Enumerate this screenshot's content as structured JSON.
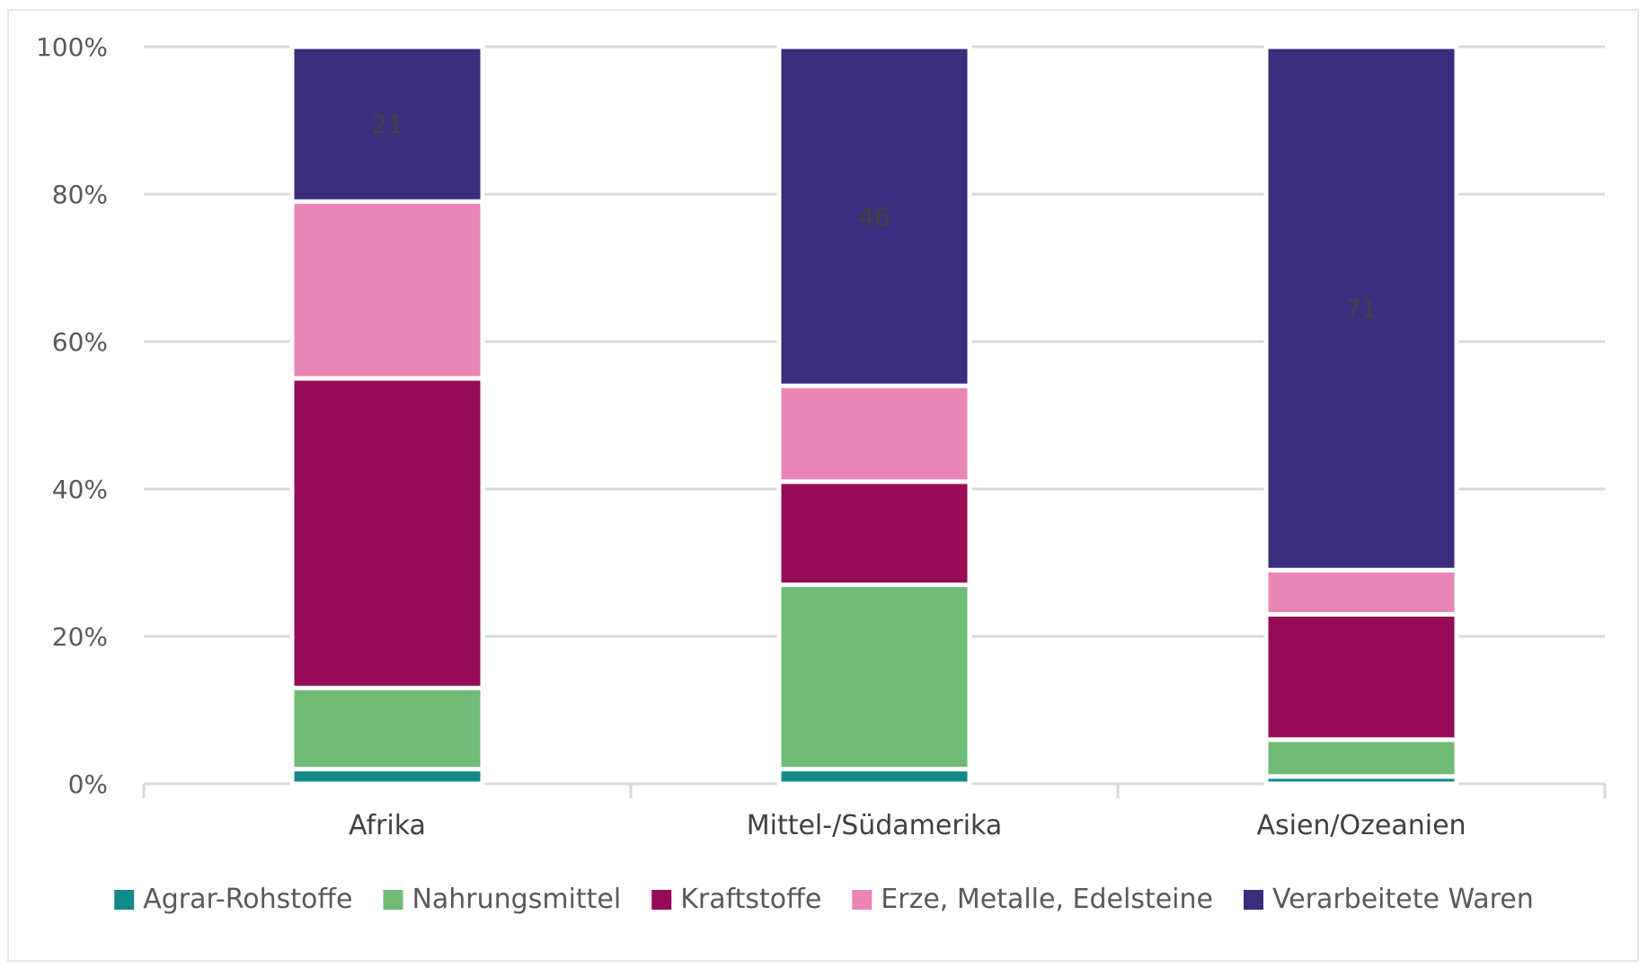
{
  "chart_data": {
    "type": "bar",
    "stacked": true,
    "percent_stacked": true,
    "categories": [
      "Afrika",
      "Mittel-/Südamerika",
      "Asien/Ozeanien"
    ],
    "series": [
      {
        "name": "Agrar-Rohstoffe",
        "color": "#138a8a",
        "values": [
          2,
          2,
          1
        ]
      },
      {
        "name": "Nahrungsmittel",
        "color": "#6fbb77",
        "values": [
          11,
          25,
          5
        ]
      },
      {
        "name": "Kraftstoffe",
        "color": "#960b55",
        "values": [
          42,
          14,
          17
        ]
      },
      {
        "name": "Erze, Metalle, Edelsteine",
        "color": "#e986b5",
        "values": [
          24,
          13,
          6
        ]
      },
      {
        "name": "Verarbeitete Waren",
        "color": "#3a2d7b",
        "values": [
          21,
          46,
          71
        ]
      }
    ],
    "data_labels": [
      {
        "category": "Afrika",
        "series": "Verarbeitete Waren",
        "text": "21"
      },
      {
        "category": "Mittel-/Südamerika",
        "series": "Verarbeitete Waren",
        "text": "46"
      },
      {
        "category": "Asien/Ozeanien",
        "series": "Verarbeitete Waren",
        "text": "71"
      }
    ],
    "ylim": [
      0,
      100
    ],
    "yticks": [
      "0%",
      "20%",
      "40%",
      "60%",
      "80%",
      "100%"
    ],
    "grid": true,
    "legend_position": "bottom",
    "title": "",
    "xlabel": "",
    "ylabel": ""
  }
}
